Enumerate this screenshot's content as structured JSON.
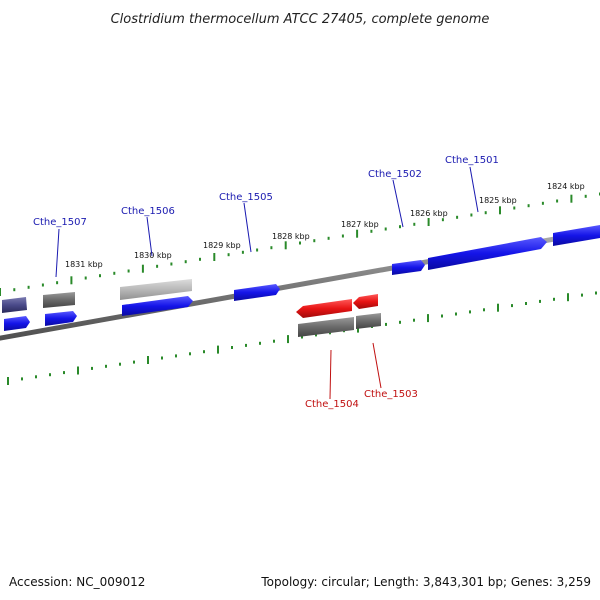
{
  "title": "Clostridium thermocellum ATCC 27405, complete genome",
  "footer": {
    "accession": "Accession: NC_009012",
    "summary": "Topology: circular; Length: 3,843,301 bp; Genes: 3,259"
  },
  "colors": {
    "backbone": "#8a8a8a",
    "tick": "#2a8a2a",
    "forward_gene": "#1010e0",
    "reverse_gene": "#e01010",
    "other_feature": "#707070",
    "pale_feature": "#b8b8b8",
    "dark_feature": "#4a4a8a",
    "label_blue": "#1a1ab0",
    "label_red": "#c01010"
  },
  "scale_labels": [
    "1831 kbp",
    "1830 kbp",
    "1829 kbp",
    "1828 kbp",
    "1827 kbp",
    "1826 kbp",
    "1825 kbp",
    "1824 kbp"
  ],
  "gene_labels": [
    {
      "name": "Cthe_1507",
      "strand": "forward"
    },
    {
      "name": "Cthe_1506",
      "strand": "forward"
    },
    {
      "name": "Cthe_1505",
      "strand": "forward"
    },
    {
      "name": "Cthe_1502",
      "strand": "forward"
    },
    {
      "name": "Cthe_1501",
      "strand": "forward"
    },
    {
      "name": "Cthe_1504",
      "strand": "reverse"
    },
    {
      "name": "Cthe_1503",
      "strand": "reverse"
    }
  ]
}
